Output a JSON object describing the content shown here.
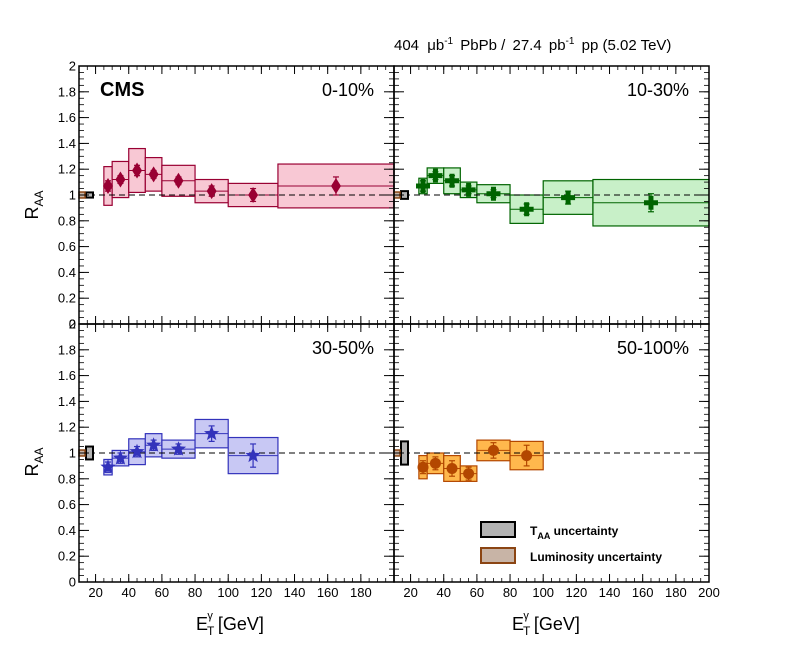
{
  "header": "404 μb⁻¹ PbPb / 27.4 pb⁻¹ pp (5.02 TeV)",
  "header_parts": {
    "lumi_pbpb": "404",
    "unit_pbpb": "μb",
    "sup": "-1",
    "sys_pbpb": "PbPb /",
    "lumi_pp": "27.4",
    "unit_pp": "pb",
    "sys_pp": "pp (5.02 TeV)"
  },
  "experiment": "CMS",
  "legend": {
    "taa": {
      "main": "T",
      "sub": "AA",
      "tail": " uncertainty",
      "color": "#b3b3b3"
    },
    "lumi": {
      "label": "Luminosity uncertainty",
      "color": "#c8b4a6",
      "border": "#8b4513"
    }
  },
  "chart_data": {
    "type": "scatter",
    "ylabel": {
      "main": "R",
      "sub": "AA"
    },
    "xlabel": {
      "main": "E",
      "sub": "T",
      "sup": "γ",
      "unit": " [GeV]"
    },
    "ylim": [
      0,
      2
    ],
    "yticks": [
      "0",
      "0.2",
      "0.4",
      "0.6",
      "0.8",
      "1",
      "1.2",
      "1.4",
      "1.6",
      "1.8",
      "2"
    ],
    "xticks_left": [
      "20",
      "40",
      "60",
      "80",
      "100",
      "120",
      "140",
      "160",
      "180"
    ],
    "xticks_right": [
      "20",
      "40",
      "60",
      "80",
      "100",
      "120",
      "140",
      "160",
      "180",
      "200"
    ],
    "xlim": [
      10,
      200
    ],
    "reference_line": 1,
    "lumi_uncertainty": 0.023,
    "panels": [
      {
        "label": "0-10%",
        "color": "#990033",
        "fill": "#f8c8d4",
        "marker": "diamond",
        "taa": 0.02,
        "points": [
          {
            "x": 27.5,
            "y": 1.07,
            "stat": 0.04,
            "syst": 0.15,
            "xlo": 25,
            "xhi": 30
          },
          {
            "x": 35,
            "y": 1.12,
            "stat": 0.03,
            "syst": 0.14,
            "xlo": 30,
            "xhi": 40
          },
          {
            "x": 45,
            "y": 1.19,
            "stat": 0.04,
            "syst": 0.17,
            "xlo": 40,
            "xhi": 50
          },
          {
            "x": 55,
            "y": 1.16,
            "stat": 0.03,
            "syst": 0.13,
            "xlo": 50,
            "xhi": 60
          },
          {
            "x": 70,
            "y": 1.11,
            "stat": 0.03,
            "syst": 0.12,
            "xlo": 60,
            "xhi": 80
          },
          {
            "x": 90,
            "y": 1.03,
            "stat": 0.04,
            "syst": 0.09,
            "xlo": 80,
            "xhi": 100
          },
          {
            "x": 115,
            "y": 1.0,
            "stat": 0.05,
            "syst": 0.09,
            "xlo": 100,
            "xhi": 130
          },
          {
            "x": 165,
            "y": 1.07,
            "stat": 0.07,
            "syst": 0.17,
            "xlo": 130,
            "xhi": 200
          }
        ]
      },
      {
        "label": "10-30%",
        "color": "#006400",
        "fill": "#c8f0c8",
        "marker": "cross",
        "taa": 0.03,
        "points": [
          {
            "x": 27.5,
            "y": 1.07,
            "stat": 0.04,
            "syst": 0.06,
            "xlo": 25,
            "xhi": 30
          },
          {
            "x": 35,
            "y": 1.15,
            "stat": 0.03,
            "syst": 0.06,
            "xlo": 30,
            "xhi": 40
          },
          {
            "x": 45,
            "y": 1.11,
            "stat": 0.04,
            "syst": 0.1,
            "xlo": 40,
            "xhi": 50
          },
          {
            "x": 55,
            "y": 1.04,
            "stat": 0.03,
            "syst": 0.06,
            "xlo": 50,
            "xhi": 60
          },
          {
            "x": 70,
            "y": 1.01,
            "stat": 0.03,
            "syst": 0.07,
            "xlo": 60,
            "xhi": 80
          },
          {
            "x": 90,
            "y": 0.89,
            "stat": 0.04,
            "syst": 0.11,
            "xlo": 80,
            "xhi": 100
          },
          {
            "x": 115,
            "y": 0.98,
            "stat": 0.05,
            "syst": 0.13,
            "xlo": 100,
            "xhi": 130
          },
          {
            "x": 165,
            "y": 0.94,
            "stat": 0.07,
            "syst": 0.18,
            "xlo": 130,
            "xhi": 200
          }
        ]
      },
      {
        "label": "30-50%",
        "color": "#3333bb",
        "fill": "#c8c8f4",
        "marker": "star",
        "taa": 0.05,
        "points": [
          {
            "x": 27.5,
            "y": 0.89,
            "stat": 0.04,
            "syst": 0.06,
            "xlo": 25,
            "xhi": 30
          },
          {
            "x": 35,
            "y": 0.96,
            "stat": 0.04,
            "syst": 0.06,
            "xlo": 30,
            "xhi": 40
          },
          {
            "x": 45,
            "y": 1.01,
            "stat": 0.04,
            "syst": 0.1,
            "xlo": 40,
            "xhi": 50
          },
          {
            "x": 55,
            "y": 1.06,
            "stat": 0.04,
            "syst": 0.09,
            "xlo": 50,
            "xhi": 60
          },
          {
            "x": 70,
            "y": 1.03,
            "stat": 0.04,
            "syst": 0.07,
            "xlo": 60,
            "xhi": 80
          },
          {
            "x": 90,
            "y": 1.15,
            "stat": 0.06,
            "syst": 0.11,
            "xlo": 80,
            "xhi": 100
          },
          {
            "x": 115,
            "y": 0.98,
            "stat": 0.09,
            "syst": 0.14,
            "xlo": 100,
            "xhi": 130
          }
        ]
      },
      {
        "label": "50-100%",
        "color": "#b34700",
        "fill": "#ffb84d",
        "marker": "circle",
        "taa": 0.09,
        "points": [
          {
            "x": 27.5,
            "y": 0.89,
            "stat": 0.05,
            "syst": 0.09,
            "xlo": 25,
            "xhi": 30
          },
          {
            "x": 35,
            "y": 0.92,
            "stat": 0.05,
            "syst": 0.08,
            "xlo": 30,
            "xhi": 40
          },
          {
            "x": 45,
            "y": 0.88,
            "stat": 0.06,
            "syst": 0.1,
            "xlo": 40,
            "xhi": 50
          },
          {
            "x": 55,
            "y": 0.84,
            "stat": 0.05,
            "syst": 0.06,
            "xlo": 50,
            "xhi": 60
          },
          {
            "x": 70,
            "y": 1.02,
            "stat": 0.06,
            "syst": 0.08,
            "xlo": 60,
            "xhi": 80
          },
          {
            "x": 90,
            "y": 0.98,
            "stat": 0.08,
            "syst": 0.11,
            "xlo": 80,
            "xhi": 100
          }
        ]
      }
    ]
  }
}
